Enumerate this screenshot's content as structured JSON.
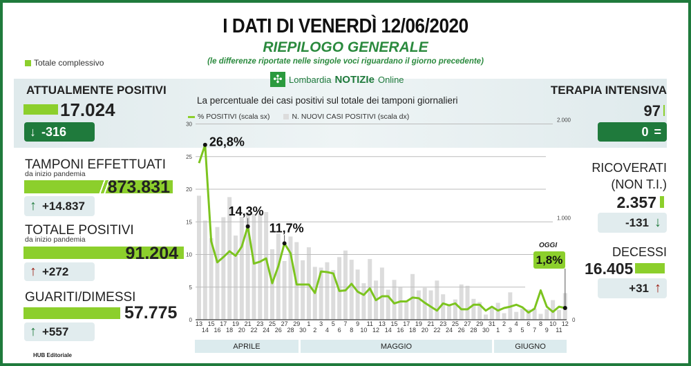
{
  "header": {
    "title": "I DATI DI VENERDÌ 12/06/2020",
    "subtitle": "RIEPILOGO GENERALE",
    "note": "(le differenze riportate nelle singole voci riguardano il giorno precedente)",
    "legend_total": "Totale complessivo",
    "logo_text": "Lombardia",
    "logo_brand": "NOTIZIe",
    "logo_suffix": "Online"
  },
  "left": {
    "attualmente": {
      "label": "ATTUALMENTE POSITIVI",
      "value": "17.024",
      "delta": "-316"
    },
    "tamponi": {
      "label": "TAMPONI EFFETTUATI",
      "sub": "da inizio pandemia",
      "value": "873.831",
      "delta": "+14.837"
    },
    "totale": {
      "label": "TOTALE POSITIVI",
      "sub": "da inizio pandemia",
      "value": "91.204",
      "delta": "+272"
    },
    "guariti": {
      "label": "GUARITI/DIMESSI",
      "value": "57.775",
      "delta": "+557"
    }
  },
  "right": {
    "terapia": {
      "label": "TERAPIA INTENSIVA",
      "value": "97",
      "delta": "0"
    },
    "ricoverati": {
      "label1": "RICOVERATI",
      "label2": "(NON T.I.)",
      "value": "2.357",
      "delta": "-131"
    },
    "decessi": {
      "label": "DECESSI",
      "value": "16.405",
      "delta": "+31"
    }
  },
  "footer": {
    "credit": "HUB Editoriale"
  },
  "colors": {
    "green_dark": "#1f7a3c",
    "green_light": "#8ccf2c",
    "bar_grey": "#dcdcdc",
    "red": "#9b1b10"
  },
  "chart_data": {
    "type": "bar+line",
    "title": "La percentuale dei casi positivi sul totale dei tamponi giornalieri",
    "legend": [
      "% POSITIVI (scala sx)",
      "N. NUOVI CASI POSITIVI (scala dx)"
    ],
    "ylim_left": [
      0,
      30
    ],
    "yticks_left": [
      "0",
      "5",
      "10",
      "15",
      "20",
      "25",
      "30"
    ],
    "ylim_right": [
      0,
      2000
    ],
    "yticks_right": [
      "0",
      "1.000",
      "2.000"
    ],
    "months": [
      "APRILE",
      "MAGGIO",
      "GIUGNO"
    ],
    "x": [
      "13",
      "14",
      "15",
      "16",
      "17",
      "18",
      "19",
      "20",
      "21",
      "22",
      "23",
      "24",
      "25",
      "26",
      "27",
      "28",
      "29",
      "30",
      "1",
      "2",
      "3",
      "4",
      "5",
      "6",
      "7",
      "8",
      "9",
      "10",
      "11",
      "12",
      "13",
      "14",
      "15",
      "16",
      "17",
      "18",
      "19",
      "20",
      "21",
      "22",
      "23",
      "24",
      "25",
      "26",
      "27",
      "28",
      "29",
      "30",
      "31",
      "1",
      "2",
      "3",
      "4",
      "5",
      "6",
      "7",
      "8",
      "9",
      "10",
      "11",
      "12"
    ],
    "series": [
      {
        "name": "% POSITIVI",
        "type": "line",
        "values": [
          24,
          26.8,
          12,
          8.8,
          9.6,
          10.5,
          9.8,
          11.2,
          14.3,
          8.6,
          8.9,
          9.4,
          5.6,
          8.2,
          11.7,
          10.2,
          5.4,
          5.4,
          5.4,
          4.1,
          7.4,
          7.3,
          7.1,
          4.4,
          4.5,
          5.5,
          4.3,
          3.8,
          4.8,
          3.0,
          3.6,
          3.6,
          2.5,
          2.8,
          2.8,
          3.4,
          3.3,
          2.6,
          2.0,
          1.4,
          2.5,
          2.2,
          2.5,
          1.6,
          1.6,
          2.3,
          2.3,
          1.4,
          2.0,
          1.4,
          1.8,
          2.0,
          2.3,
          1.9,
          1.1,
          1.7,
          4.5,
          2.0,
          1.2,
          2.0,
          1.8
        ]
      },
      {
        "name": "N. NUOVI CASI POSITIVI",
        "type": "bar",
        "values": [
          1267,
          1013,
          833,
          947,
          1047,
          1253,
          860,
          1050,
          1100,
          1080,
          1090,
          1100,
          720,
          880,
          600,
          850,
          793,
          607,
          740,
          540,
          533,
          587,
          507,
          640,
          707,
          613,
          513,
          373,
          620,
          400,
          533,
          307,
          407,
          333,
          187,
          467,
          300,
          327,
          300,
          400,
          260,
          153,
          207,
          360,
          347,
          213,
          180,
          53,
          120,
          173,
          67,
          280,
          80,
          113,
          107,
          113,
          60,
          107,
          200,
          100,
          272
        ]
      }
    ],
    "annotations": [
      {
        "label": "26,8%",
        "index": 1
      },
      {
        "label": "14,3%",
        "index": 8
      },
      {
        "label": "11,7%",
        "index": 14
      }
    ],
    "today": {
      "tag": "OGGI",
      "label": "1,8%",
      "index": 60
    }
  }
}
